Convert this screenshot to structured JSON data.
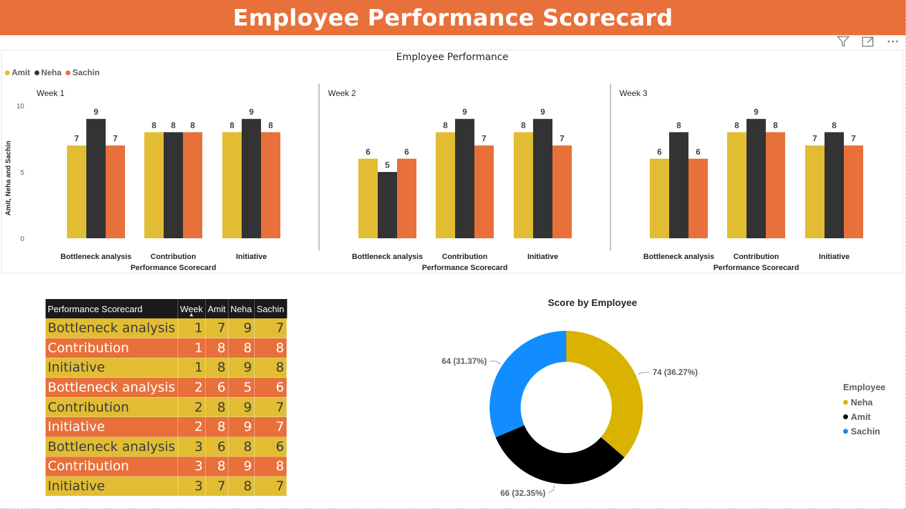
{
  "header": {
    "title": "Employee Performance Scorecard"
  },
  "toolbar": {
    "icons": [
      "filter-icon",
      "focus-mode-icon",
      "more-options-icon"
    ],
    "more_label": "···"
  },
  "colors": {
    "amit": "#E2BD33",
    "neha": "#333333",
    "sachin": "#E8703A",
    "banner": "#E8703A",
    "donut_neha": "#D9B300",
    "donut_amit": "#000000",
    "donut_sachin": "#118DFF"
  },
  "chart_data": [
    {
      "type": "bar",
      "title": "Employee Performance",
      "legend": [
        "Amit",
        "Neha",
        "Sachin"
      ],
      "legend_position": "top-left",
      "ylabel": "Amit, Neha and Sachin",
      "xlabel": "Performance Scorecard",
      "ylim": [
        0,
        10
      ],
      "yticks": [
        "10",
        "5",
        "0"
      ],
      "categories": [
        "Bottleneck analysis",
        "Contribution",
        "Initiative"
      ],
      "panels": [
        {
          "label": "Week 1",
          "series": [
            {
              "name": "Amit",
              "values": [
                7,
                8,
                8
              ]
            },
            {
              "name": "Neha",
              "values": [
                9,
                8,
                9
              ]
            },
            {
              "name": "Sachin",
              "values": [
                7,
                8,
                8
              ]
            }
          ]
        },
        {
          "label": "Week 2",
          "series": [
            {
              "name": "Amit",
              "values": [
                6,
                8,
                8
              ]
            },
            {
              "name": "Neha",
              "values": [
                5,
                9,
                9
              ]
            },
            {
              "name": "Sachin",
              "values": [
                6,
                7,
                7
              ]
            }
          ]
        },
        {
          "label": "Week 3",
          "series": [
            {
              "name": "Amit",
              "values": [
                6,
                8,
                7
              ]
            },
            {
              "name": "Neha",
              "values": [
                8,
                9,
                8
              ]
            },
            {
              "name": "Sachin",
              "values": [
                6,
                8,
                7
              ]
            }
          ]
        }
      ]
    },
    {
      "type": "table",
      "columns": [
        "Performance Scorecard",
        "Week",
        "Amit",
        "Neha",
        "Sachin"
      ],
      "sort_column": "Week",
      "rows": [
        [
          "Bottleneck analysis",
          "1",
          "7",
          "9",
          "7"
        ],
        [
          "Contribution",
          "1",
          "8",
          "8",
          "8"
        ],
        [
          "Initiative",
          "1",
          "8",
          "9",
          "8"
        ],
        [
          "Bottleneck analysis",
          "2",
          "6",
          "5",
          "6"
        ],
        [
          "Contribution",
          "2",
          "8",
          "9",
          "7"
        ],
        [
          "Initiative",
          "2",
          "8",
          "9",
          "7"
        ],
        [
          "Bottleneck analysis",
          "3",
          "6",
          "8",
          "6"
        ],
        [
          "Contribution",
          "3",
          "8",
          "9",
          "8"
        ],
        [
          "Initiative",
          "3",
          "7",
          "8",
          "7"
        ]
      ]
    },
    {
      "type": "pie",
      "title": "Score by Employee",
      "legend_title": "Employee",
      "legend_position": "right",
      "slices": [
        {
          "name": "Neha",
          "value": 74,
          "label": "74 (36.27%)"
        },
        {
          "name": "Amit",
          "value": 66,
          "label": "66 (32.35%)"
        },
        {
          "name": "Sachin",
          "value": 64,
          "label": "64 (31.37%)"
        }
      ]
    }
  ]
}
